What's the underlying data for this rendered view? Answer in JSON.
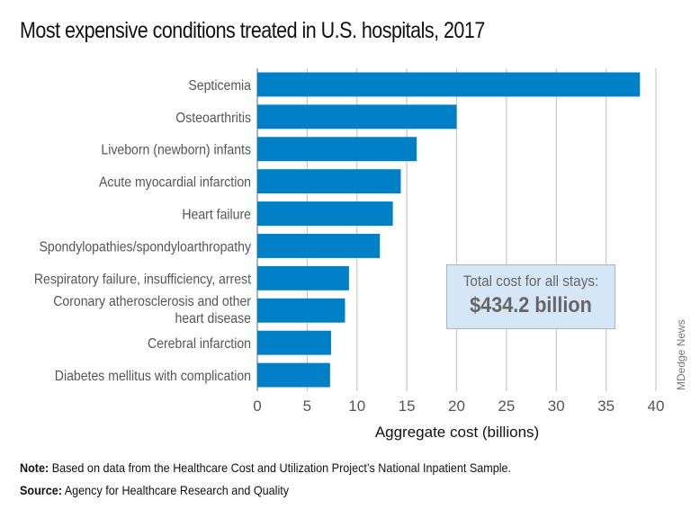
{
  "chart_data": {
    "type": "bar",
    "orientation": "horizontal",
    "title": "Most expensive conditions treated in U.S. hospitals, 2017",
    "categories": [
      "Septicemia",
      "Osteoarthritis",
      "Liveborn (newborn) infants",
      "Acute myocardial infarction",
      "Heart failure",
      "Spondylopathies/spondyloarthropathy",
      "Respiratory failure, insufficiency, arrest",
      [
        "Coronary atherosclerosis and other",
        "heart disease"
      ],
      "Cerebral infarction",
      "Diabetes mellitus with complication"
    ],
    "values": [
      38.4,
      20.0,
      16.0,
      14.4,
      13.6,
      12.3,
      9.2,
      8.8,
      7.4,
      7.3
    ],
    "xlabel": "Aggregate cost (billions)",
    "ylabel": "",
    "xlim": [
      0,
      40
    ],
    "xticks": [
      0,
      5,
      10,
      15,
      20,
      25,
      30,
      35,
      40
    ],
    "grid": true,
    "bar_color": "#0080c6",
    "annotation": {
      "line1": "Total cost for all stays:",
      "line2": "$434.2 billion"
    }
  },
  "credit": "MDedge News",
  "footer": {
    "note_label": "Note:",
    "note_text": " Based on data from the Healthcare Cost and Utilization Project’s National Inpatient Sample.",
    "source_label": "Source:",
    "source_text": " Agency for Healthcare Research and Quality"
  }
}
